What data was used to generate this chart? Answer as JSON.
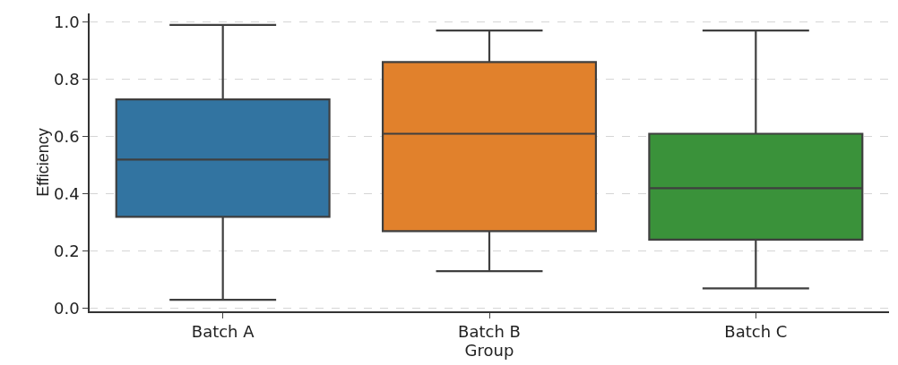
{
  "chart_data": {
    "type": "box",
    "xlabel": "Group",
    "ylabel": "Efficiency",
    "categories": [
      "Batch A",
      "Batch B",
      "Batch C"
    ],
    "colors": [
      "#3274a1",
      "#e1812c",
      "#3a923a"
    ],
    "boxes": [
      {
        "low": 0.03,
        "q1": 0.32,
        "median": 0.52,
        "q3": 0.73,
        "high": 0.99
      },
      {
        "low": 0.13,
        "q1": 0.27,
        "median": 0.61,
        "q3": 0.86,
        "high": 0.97
      },
      {
        "low": 0.07,
        "q1": 0.24,
        "median": 0.42,
        "q3": 0.61,
        "high": 0.97
      }
    ],
    "ylim": [
      -0.01,
      1.03
    ],
    "yticks": [
      {
        "value": 0,
        "label": "0.0"
      },
      0.2,
      0.4,
      0.6,
      0.8,
      {
        "value": 1,
        "label": "1.0"
      }
    ],
    "grid": "y"
  }
}
